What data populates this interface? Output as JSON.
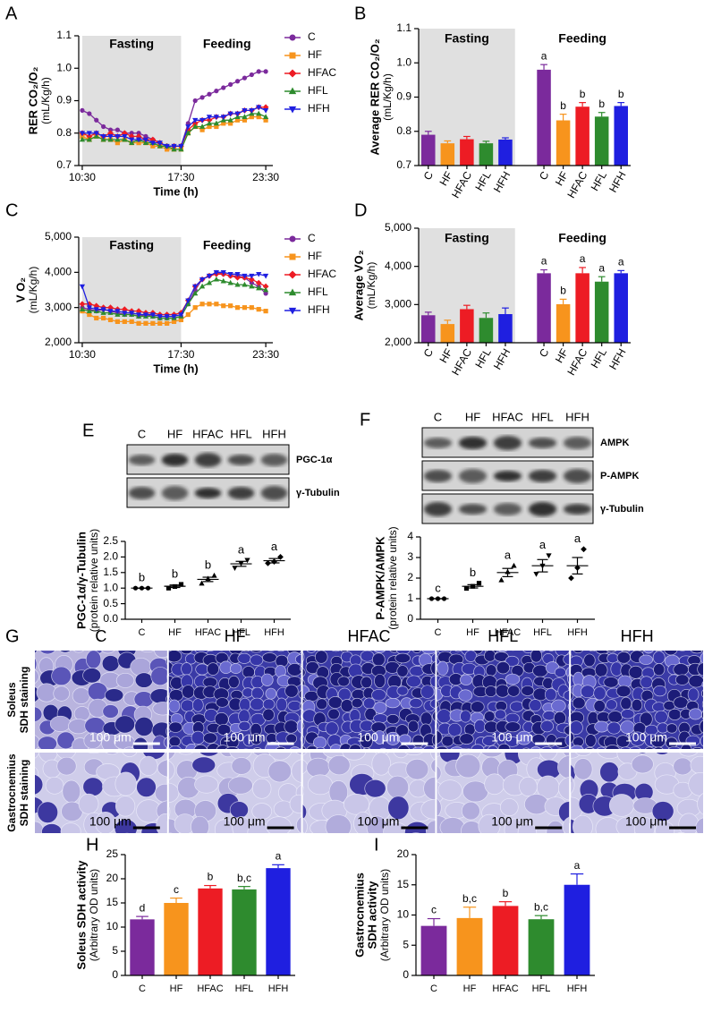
{
  "chart_data": [
    {
      "panel": "A",
      "type": "line",
      "ylabel": [
        "RER CO₂/O₂",
        "(mL/Kg/h)"
      ],
      "xlabel": "Time (h)",
      "annotations": [
        "Fasting",
        "Feeding"
      ],
      "shade_x": [
        10.5,
        17.5
      ],
      "x": [
        10.5,
        11,
        11.5,
        12,
        12.5,
        13,
        13.5,
        14,
        14.5,
        15,
        15.5,
        16,
        16.5,
        17,
        17.5,
        18,
        18.5,
        19,
        19.5,
        20,
        20.5,
        21,
        21.5,
        22,
        22.5,
        23,
        23.5
      ],
      "xlim": [
        10.25,
        24
      ],
      "xticks": [
        {
          "value": 10.5,
          "label": "10:30"
        },
        {
          "value": 17.5,
          "label": "17:30"
        },
        {
          "value": 23.5,
          "label": "23:30"
        }
      ],
      "ylim": [
        0.7,
        1.1
      ],
      "yticks": [
        0.7,
        0.8,
        0.9,
        {
          "value": 1,
          "label": "1.0"
        },
        1.1
      ],
      "series": [
        {
          "name": "C",
          "color": "#7b2a9c",
          "marker": "circle",
          "values": [
            0.87,
            0.86,
            0.84,
            0.82,
            0.81,
            0.81,
            0.8,
            0.8,
            0.8,
            0.79,
            0.78,
            0.77,
            0.76,
            0.76,
            0.76,
            0.83,
            0.9,
            0.91,
            0.92,
            0.93,
            0.94,
            0.95,
            0.96,
            0.97,
            0.98,
            0.99,
            0.99
          ]
        },
        {
          "name": "HF",
          "color": "#f7941d",
          "marker": "square",
          "values": [
            0.79,
            0.78,
            0.79,
            0.78,
            0.78,
            0.77,
            0.78,
            0.77,
            0.77,
            0.77,
            0.76,
            0.76,
            0.75,
            0.75,
            0.75,
            0.8,
            0.82,
            0.81,
            0.82,
            0.82,
            0.83,
            0.83,
            0.84,
            0.84,
            0.85,
            0.85,
            0.84
          ]
        },
        {
          "name": "HFAC",
          "color": "#ed1c24",
          "marker": "diamond",
          "values": [
            0.8,
            0.79,
            0.8,
            0.79,
            0.8,
            0.79,
            0.8,
            0.79,
            0.79,
            0.78,
            0.78,
            0.77,
            0.76,
            0.76,
            0.76,
            0.81,
            0.83,
            0.84,
            0.84,
            0.85,
            0.85,
            0.86,
            0.86,
            0.87,
            0.87,
            0.88,
            0.88
          ]
        },
        {
          "name": "HFL",
          "color": "#2e8b2e",
          "marker": "triangle",
          "values": [
            0.78,
            0.78,
            0.79,
            0.78,
            0.78,
            0.78,
            0.78,
            0.77,
            0.78,
            0.77,
            0.77,
            0.76,
            0.76,
            0.75,
            0.75,
            0.8,
            0.82,
            0.82,
            0.83,
            0.83,
            0.84,
            0.84,
            0.85,
            0.85,
            0.86,
            0.86,
            0.85
          ]
        },
        {
          "name": "HFH",
          "color": "#1f1fe0",
          "marker": "triangle-down",
          "values": [
            0.8,
            0.8,
            0.8,
            0.79,
            0.79,
            0.79,
            0.79,
            0.78,
            0.78,
            0.78,
            0.77,
            0.77,
            0.76,
            0.76,
            0.76,
            0.82,
            0.84,
            0.84,
            0.85,
            0.85,
            0.85,
            0.86,
            0.86,
            0.87,
            0.87,
            0.88,
            0.87
          ]
        }
      ]
    },
    {
      "panel": "B",
      "type": "bar",
      "ylabel": [
        "Average RER CO₂/O₂",
        "(mL/Kg/h)"
      ],
      "categories": [
        "C",
        "HF",
        "HFAC",
        "HFL",
        "HFH"
      ],
      "colors": [
        "#7b2a9c",
        "#f7941d",
        "#ed1c24",
        "#2e8b2e",
        "#1f1fe0"
      ],
      "ylim": [
        0.7,
        1.1
      ],
      "yticks": [
        0.7,
        0.8,
        0.9,
        {
          "value": 1,
          "label": "1.0"
        },
        1.1
      ],
      "groups": [
        {
          "name": "Fasting",
          "shaded": true,
          "values": [
            0.79,
            0.765,
            0.777,
            0.765,
            0.776
          ],
          "errors": [
            0.01,
            0.007,
            0.008,
            0.006,
            0.005
          ]
        },
        {
          "name": "Feeding",
          "values": [
            0.98,
            0.832,
            0.872,
            0.843,
            0.874
          ],
          "errors": [
            0.015,
            0.018,
            0.012,
            0.012,
            0.01
          ],
          "letters": [
            "a",
            "b",
            "b",
            "b",
            "b"
          ]
        }
      ]
    },
    {
      "panel": "C",
      "type": "line",
      "ylabel": [
        "V O₂",
        "(mL/Kg/h)"
      ],
      "xlabel": "Time (h)",
      "annotations": [
        "Fasting",
        "Feeding"
      ],
      "shade_x": [
        10.5,
        17.5
      ],
      "x": [
        10.5,
        11,
        11.5,
        12,
        12.5,
        13,
        13.5,
        14,
        14.5,
        15,
        15.5,
        16,
        16.5,
        17,
        17.5,
        18,
        18.5,
        19,
        19.5,
        20,
        20.5,
        21,
        21.5,
        22,
        22.5,
        23,
        23.5
      ],
      "xlim": [
        10.25,
        24
      ],
      "xticks": [
        {
          "value": 10.5,
          "label": "10:30"
        },
        {
          "value": 17.5,
          "label": "17:30"
        },
        {
          "value": 23.5,
          "label": "23:30"
        }
      ],
      "ylim": [
        2000,
        5000
      ],
      "yticks": [
        {
          "value": 2000,
          "label": "2,000"
        },
        {
          "value": 3000,
          "label": "3,000"
        },
        {
          "value": 4000,
          "label": "4,000"
        },
        {
          "value": 5000,
          "label": "5,000"
        }
      ],
      "series": [
        {
          "name": "C",
          "color": "#7b2a9c",
          "marker": "circle",
          "values": [
            3000,
            2950,
            2900,
            2950,
            2900,
            2850,
            2800,
            2800,
            2750,
            2800,
            2750,
            2700,
            2700,
            2700,
            2750,
            3100,
            3500,
            3800,
            3900,
            4000,
            3950,
            3900,
            3900,
            3850,
            3700,
            3600,
            3400
          ]
        },
        {
          "name": "HF",
          "color": "#f7941d",
          "marker": "square",
          "values": [
            2900,
            2800,
            2700,
            2700,
            2650,
            2600,
            2600,
            2600,
            2550,
            2550,
            2550,
            2550,
            2550,
            2600,
            2650,
            2800,
            3000,
            3100,
            3100,
            3100,
            3050,
            3050,
            3000,
            3000,
            3000,
            2950,
            2900
          ]
        },
        {
          "name": "HFAC",
          "color": "#ed1c24",
          "marker": "diamond",
          "values": [
            3100,
            3100,
            3050,
            3000,
            3000,
            2950,
            2950,
            2900,
            2900,
            2850,
            2850,
            2800,
            2800,
            2800,
            2850,
            3200,
            3600,
            3800,
            3900,
            3950,
            3950,
            3900,
            3850,
            3850,
            3800,
            3700,
            3600
          ]
        },
        {
          "name": "HFL",
          "color": "#2e8b2e",
          "marker": "triangle",
          "values": [
            2950,
            2900,
            2900,
            2850,
            2850,
            2800,
            2800,
            2800,
            2750,
            2750,
            2750,
            2700,
            2700,
            2700,
            2750,
            3100,
            3400,
            3600,
            3700,
            3800,
            3750,
            3700,
            3650,
            3650,
            3600,
            3550,
            3500
          ]
        },
        {
          "name": "HFH",
          "color": "#1f1fe0",
          "marker": "triangle-down",
          "values": [
            3600,
            3000,
            2950,
            2950,
            2900,
            2900,
            2850,
            2850,
            2800,
            2800,
            2800,
            2750,
            2750,
            2750,
            2800,
            3200,
            3600,
            3800,
            3900,
            4000,
            4000,
            3950,
            3950,
            3900,
            3900,
            3950,
            3900
          ]
        }
      ]
    },
    {
      "panel": "D",
      "type": "bar",
      "ylabel": [
        "Average VO₂",
        "(mL/Kg/h)"
      ],
      "categories": [
        "C",
        "HF",
        "HFAC",
        "HFL",
        "HFH"
      ],
      "colors": [
        "#7b2a9c",
        "#f7941d",
        "#ed1c24",
        "#2e8b2e",
        "#1f1fe0"
      ],
      "ylim": [
        2000,
        5000
      ],
      "yticks": [
        {
          "value": 2000,
          "label": "2,000"
        },
        {
          "value": 3000,
          "label": "3,000"
        },
        {
          "value": 4000,
          "label": "4,000"
        },
        {
          "value": 5000,
          "label": "5,000"
        }
      ],
      "groups": [
        {
          "name": "Fasting",
          "shaded": true,
          "values": [
            2720,
            2490,
            2880,
            2650,
            2750
          ],
          "errors": [
            80,
            100,
            100,
            130,
            160
          ]
        },
        {
          "name": "Feeding",
          "values": [
            3820,
            3010,
            3820,
            3600,
            3820
          ],
          "errors": [
            90,
            130,
            150,
            130,
            70
          ],
          "letters": [
            "a",
            "b",
            "a",
            "a",
            "a"
          ]
        }
      ]
    },
    {
      "panel": "E",
      "type": "dot",
      "ylabel": [
        "PGC-1α/γ-Tubulin",
        "(protein relative units)"
      ],
      "categories": [
        "C",
        "HF",
        "HFAC",
        "HFL",
        "HFH"
      ],
      "bands": [
        "PGC-1α",
        "γ-Tubulin"
      ],
      "markers": [
        "circle",
        "square",
        "triangle",
        "triangle-down",
        "diamond"
      ],
      "ylim": [
        0,
        2.5
      ],
      "yticks": [
        {
          "value": 0,
          "label": "0.0"
        },
        0.5,
        {
          "value": 1,
          "label": "1.0"
        },
        1.5,
        {
          "value": 2,
          "label": "2.0"
        },
        2.5
      ],
      "points": [
        [
          1,
          1,
          1
        ],
        [
          1.0,
          1.05,
          1.12
        ],
        [
          1.15,
          1.3,
          1.4
        ],
        [
          1.65,
          1.8,
          1.9
        ],
        [
          1.8,
          1.85,
          2.0
        ]
      ],
      "means": [
        1,
        1.06,
        1.28,
        1.78,
        1.88
      ],
      "sems": [
        0,
        0.04,
        0.07,
        0.08,
        0.07
      ],
      "letters": [
        "b",
        "b",
        "b",
        "a",
        "a"
      ]
    },
    {
      "panel": "F",
      "type": "dot",
      "ylabel": [
        "P-AMPK/AMPK",
        "(protein relative units)"
      ],
      "categories": [
        "C",
        "HF",
        "HFAC",
        "HFL",
        "HFH"
      ],
      "bands": [
        "AMPK",
        "P-AMPK",
        "γ-Tubulin"
      ],
      "markers": [
        "circle",
        "square",
        "triangle",
        "triangle-down",
        "diamond"
      ],
      "ylim": [
        0,
        4
      ],
      "yticks": [
        0,
        1,
        2,
        3,
        4
      ],
      "points": [
        [
          1,
          1,
          1
        ],
        [
          1.5,
          1.6,
          1.75
        ],
        [
          1.9,
          2.3,
          2.6
        ],
        [
          2.2,
          2.6,
          3.1
        ],
        [
          2.0,
          2.5,
          3.4
        ]
      ],
      "means": [
        1,
        1.6,
        2.27,
        2.6,
        2.6
      ],
      "sems": [
        0,
        0.08,
        0.2,
        0.3,
        0.4
      ],
      "letters": [
        "c",
        "b",
        "a",
        "a",
        "a"
      ]
    },
    {
      "panel": "H",
      "type": "bar",
      "ylabel": [
        "Soleus SDH activity",
        "(Arbitrary OD units)"
      ],
      "categories": [
        "C",
        "HF",
        "HFAC",
        "HFL",
        "HFH"
      ],
      "colors": [
        "#7b2a9c",
        "#f7941d",
        "#ed1c24",
        "#2e8b2e",
        "#1f1fe0"
      ],
      "ylim": [
        0,
        25
      ],
      "yticks": [
        0,
        5,
        10,
        15,
        20,
        25
      ],
      "groups": [
        {
          "values": [
            11.6,
            15,
            18,
            17.8,
            22.2
          ],
          "errors": [
            0.6,
            1.0,
            0.6,
            0.6,
            0.7
          ],
          "letters": [
            "d",
            "c",
            "b",
            "b,c",
            "a"
          ]
        }
      ]
    },
    {
      "panel": "I",
      "type": "bar",
      "ylabel": [
        "Gastrocnemius",
        "SDH activity",
        "(Arbitrary OD units)"
      ],
      "categories": [
        "C",
        "HF",
        "HFAC",
        "HFL",
        "HFH"
      ],
      "colors": [
        "#7b2a9c",
        "#f7941d",
        "#ed1c24",
        "#2e8b2e",
        "#1f1fe0"
      ],
      "ylim": [
        0,
        20
      ],
      "yticks": [
        0,
        5,
        10,
        15,
        20
      ],
      "groups": [
        {
          "values": [
            8.2,
            9.5,
            11.5,
            9.3,
            15
          ],
          "errors": [
            1.2,
            1.8,
            0.7,
            0.6,
            1.8
          ],
          "letters": [
            "c",
            "b,c",
            "b",
            "b,c",
            "a"
          ]
        }
      ]
    }
  ],
  "micrographs": {
    "panel": "G",
    "columns": [
      "C",
      "HF",
      "HFAC",
      "HFL",
      "HFH"
    ],
    "rows": [
      [
        "Soleus",
        "SDH staining"
      ],
      [
        "Gastrocnemius",
        "SDH staining"
      ]
    ],
    "scale_bar": "100 μm"
  }
}
